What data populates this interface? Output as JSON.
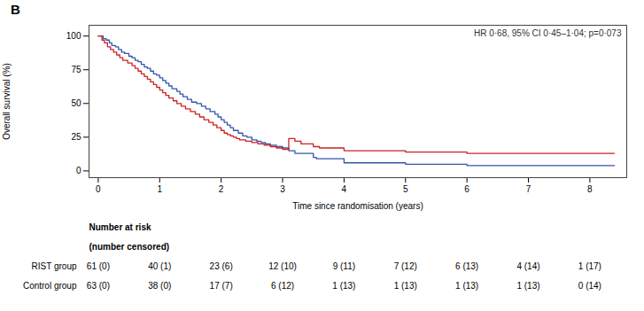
{
  "chart_data": {
    "type": "step",
    "title": "B",
    "annotations": [
      {
        "text": "HR 0·68, 95% CI 0·45–1·04; p=0·073"
      }
    ],
    "xlabel": "Time since randomisation (years)",
    "ylabel": "Overall survival (%)",
    "xlim": [
      -0.15,
      8.6
    ],
    "ylim": [
      -5,
      108
    ],
    "xticks": [
      0,
      1,
      2,
      3,
      4,
      5,
      6,
      7,
      8
    ],
    "yticks": [
      0,
      25,
      50,
      75,
      100
    ],
    "series": [
      {
        "name": "RIST group",
        "color": "#3355aa",
        "x": [
          0,
          0.08,
          0.13,
          0.18,
          0.22,
          0.28,
          0.33,
          0.38,
          0.43,
          0.5,
          0.55,
          0.6,
          0.65,
          0.7,
          0.75,
          0.8,
          0.85,
          0.9,
          0.95,
          1.0,
          1.05,
          1.1,
          1.15,
          1.2,
          1.28,
          1.33,
          1.38,
          1.45,
          1.52,
          1.6,
          1.68,
          1.75,
          1.82,
          1.9,
          1.95,
          2.0,
          2.05,
          2.1,
          2.15,
          2.2,
          2.28,
          2.35,
          2.42,
          2.5,
          2.58,
          2.65,
          2.72,
          2.8,
          2.9,
          3.0,
          3.1,
          3.2,
          3.5,
          3.55,
          4.0,
          5.0,
          6.0,
          7.0,
          7.5,
          8.4
        ],
        "values": [
          100,
          98,
          97,
          95,
          93,
          92,
          90,
          88,
          87,
          85,
          84,
          82,
          81,
          79,
          77,
          76,
          74,
          72,
          71,
          69,
          67,
          65,
          63,
          61,
          59,
          57,
          55,
          53,
          51,
          50,
          48,
          46,
          44,
          42,
          40,
          38,
          36,
          34,
          32,
          30,
          28,
          26,
          25,
          23,
          22,
          21,
          20,
          19,
          18,
          17,
          15,
          13,
          10,
          9,
          6,
          5,
          4,
          4,
          4,
          4
        ],
        "at_risk": [
          "61 (0)",
          "40 (1)",
          "23 (6)",
          "12 (10)",
          "9 (11)",
          "7 (12)",
          "6 (13)",
          "4 (14)",
          "1 (17)"
        ]
      },
      {
        "name": "Control group",
        "color": "#cc2222",
        "x": [
          0,
          0.06,
          0.1,
          0.15,
          0.2,
          0.25,
          0.3,
          0.35,
          0.4,
          0.48,
          0.55,
          0.6,
          0.65,
          0.7,
          0.75,
          0.8,
          0.85,
          0.9,
          0.95,
          1.0,
          1.05,
          1.1,
          1.15,
          1.22,
          1.28,
          1.35,
          1.42,
          1.5,
          1.58,
          1.65,
          1.72,
          1.8,
          1.87,
          1.93,
          2.0,
          2.05,
          2.1,
          2.15,
          2.2,
          2.25,
          2.3,
          2.4,
          2.5,
          2.6,
          2.7,
          2.8,
          2.9,
          3.0,
          3.1,
          3.2,
          3.3,
          3.5,
          3.6,
          4.0,
          5.0,
          6.0,
          7.0,
          7.3,
          8.4
        ],
        "values": [
          100,
          97,
          95,
          92,
          90,
          88,
          86,
          84,
          82,
          80,
          78,
          76,
          74,
          72,
          70,
          68,
          66,
          64,
          62,
          60,
          58,
          56,
          54,
          52,
          50,
          48,
          46,
          44,
          42,
          40,
          38,
          36,
          34,
          32,
          30,
          28,
          27,
          26,
          25,
          24,
          23,
          22,
          21,
          20,
          19,
          18,
          17,
          16,
          24,
          22,
          20,
          18,
          17,
          15,
          14,
          13,
          13,
          13,
          13
        ],
        "at_risk": [
          "63 (0)",
          "38 (0)",
          "17 (7)",
          "6 (12)",
          "1 (13)",
          "1 (13)",
          "1 (13)",
          "1 (13)",
          "0 (14)"
        ]
      }
    ],
    "risk_table": {
      "header": [
        "Number at risk",
        "(number censored)"
      ],
      "x": [
        0,
        1,
        2,
        3,
        4,
        5,
        6,
        7,
        8
      ]
    }
  }
}
